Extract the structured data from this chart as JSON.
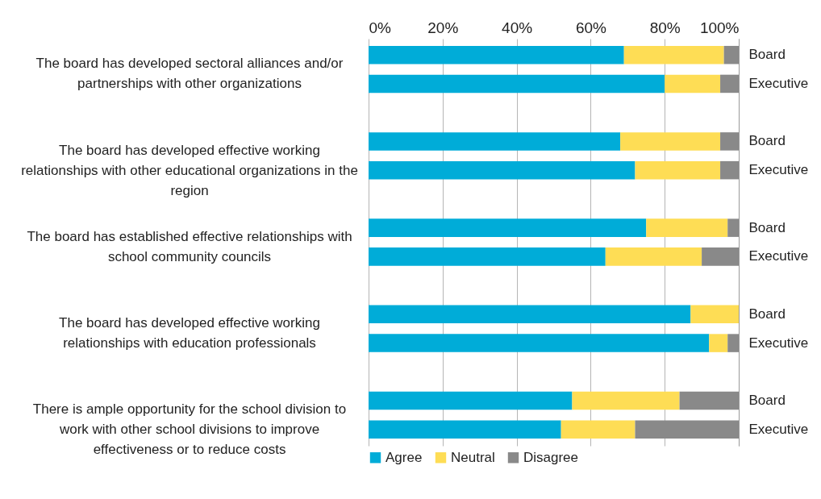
{
  "chart_data": {
    "type": "bar",
    "orientation": "horizontal",
    "stacked": true,
    "categories": [
      "Board",
      "Executive",
      "Board",
      "Executive",
      "Board",
      "Executive",
      "Board",
      "Executive",
      "Board",
      "Executive"
    ],
    "series": [
      {
        "name": "Agree",
        "color": "#00acd8",
        "values": [
          69,
          80,
          68,
          72,
          75,
          64,
          87,
          92,
          55,
          52
        ]
      },
      {
        "name": "Neutral",
        "color": "#fedd55",
        "values": [
          27,
          15,
          27,
          23,
          22,
          26,
          13,
          5,
          29,
          20
        ]
      },
      {
        "name": "Disagree",
        "color": "#898989",
        "values": [
          4,
          5,
          5,
          5,
          3,
          10,
          0,
          3,
          16,
          28
        ]
      }
    ],
    "annotations": [
      "The board has developed sectoral alliances and/or partnerships with other organizations",
      "The board has developed effective working relationships with other educational organizations in the region",
      "The board has established effective relationships with school community councils",
      "The board has developed effective working relationships with education professionals",
      "There is ample opportunity for the school division to work with other school divisions to improve effectiveness or to reduce costs"
    ],
    "xlim": [
      0,
      100
    ],
    "xticks": [
      {
        "value": 0,
        "label": "0%"
      },
      {
        "value": 20,
        "label": "20%"
      },
      {
        "value": 40,
        "label": "40%"
      },
      {
        "value": 60,
        "label": "60%"
      },
      {
        "value": 80,
        "label": "80%"
      },
      {
        "value": 100,
        "label": "100%"
      }
    ],
    "grid": true,
    "legend": "bottom"
  }
}
